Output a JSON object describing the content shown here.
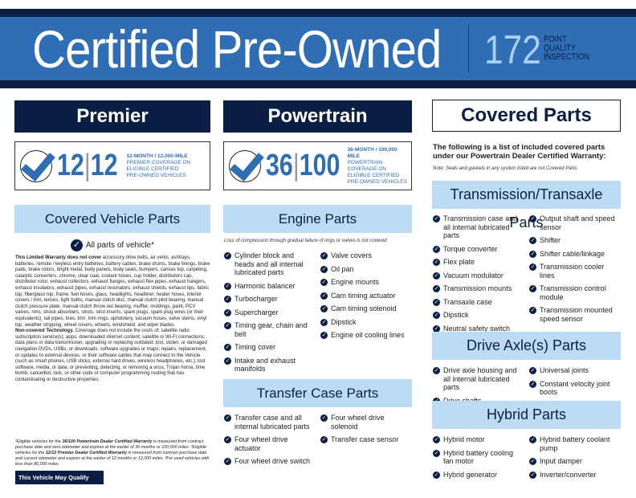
{
  "header": {
    "title": "Certified Pre-Owned",
    "points": "172",
    "points_label": [
      "POINT",
      "QUALITY",
      "INSPECTION"
    ]
  },
  "premier": {
    "heading": "Premier",
    "num1": "12",
    "num2": "12",
    "line1": "12-MONTH / 12,000-MILE",
    "line2": "PREMIER COVERAGE ON",
    "line3": "ELIGIBLE CERTIFIED",
    "line4": "PRE-OWNED VEHICLES"
  },
  "powertrain": {
    "heading": "Powertrain",
    "num1": "36",
    "num2": "100",
    "line1": "36-MONTH / 100,000 MILE",
    "line2": "POWERTRAIN COVERAGE ON",
    "line3": "ELIGIBLE CERTIFIED",
    "line4": "PRE-OWNED VEHICLES"
  },
  "vehicle_parts": {
    "heading": "Covered Vehicle Parts",
    "all_parts": "All parts of vehicle*",
    "exclusion_bold": "This Limited Warranty does not cover",
    "exclusion_text": " accessory drive belts, air vents, ashtrays, batteries, remote / keyless entry batteries, battery cables, brake drums, brake linings, brake pads, brake rotors, bright metal, body panels, body seals, bumpers, canvas top, carpeting, catalytic converters, chrome, clear coat, coolant hoses, cup holder, distributors cap, distributor rotor, exhaust collectors, exhaust flanges, exhaust flex pipes, exhaust hangers, exhaust insulators, exhaust pipes, exhaust resonators, exhaust shields, exhaust tips, fabric top, fiberglass top, frame, fuel hoses, glass, headlights, headliner, heater hoses, interior covers / trim, lenses, light bulbs, manual clutch disc, manual clutch pilot bearing, manual clutch pressure plate, manual clutch throw out bearing, muffler, moldings, paint, PCV valves, rims, shock absorbers, struts, strut inserts, spark plugs, spark plug wires (or their equivalents), tail pipes, tires, trim, trim rings, upholstery, vacuum hoses, valve stems, vinyl top, weather stripping, wheel covers, wheels, windshield, and wiper blades.",
    "tech_bold": "Non-covered Technology.",
    "tech_text": " Coverage does not include the costs of: satellite radio subscription service(s); apps; downloaded internet content; satellite or Wi-Fi connections; data plans or data transmission; upgrading or replacing outdated, lost, stolen, or damaged navigation DVDs, USBs, or downloads; software upgrades or maps; repairs, replacement, or updates to external devices, or their software cables that may connect to the Vehicle (such as smart phones, USB sticks, external hard drives, wireless headphones, etc.); lost software, media, or data; or preventing, detecting, or removing a virus, Trojan horse, time bomb, cancelbot, lock, or other code or computer programming routing that has contaminating or destructive properties.",
    "fn1a": "¹Eligible vehicles for the ",
    "fn1b": "36/100 Powertrain Dealer Certified Warranty",
    "fn1c": " is measured from contract purchase date and zero odometer and expires at the earlier of 36 months or 100,000 miles. ²Eligible vehicles for the ",
    "fn1d": "12/12 Premier Dealer Certified Warranty",
    "fn1e": " is measured from contract purchase date and current odometer and expires at the earlier of 12 months or 12,000 miles. ³For used vehicles with less than 80,000 miles.",
    "qualify_button": "This Vehicle May Qualify For..."
  },
  "engine": {
    "heading": "Engine Parts",
    "note": "Loss of compression through gradual failure of rings or valves is not covered",
    "left": [
      "Cylinder block and heads and all internal lubricated parts",
      "Harmonic balancer",
      "Turbocharger",
      "Supercharger",
      "Timing gear, chain and belt",
      "Timing cover",
      "Intake and exhaust manifolds"
    ],
    "right": [
      "Valve covers",
      "Oil pan",
      "Engine mounts",
      "Cam timing actuator",
      "Cam timing solenoid",
      "Dipstick",
      "Engine oil cooling lines"
    ]
  },
  "transfer": {
    "heading": "Transfer Case Parts",
    "left": [
      "Transfer case and all internal lubricated parts",
      "Four wheel drive actuator",
      "Four wheel drive switch"
    ],
    "right": [
      "Four wheel drive solenoid",
      "Transfer case sensor"
    ]
  },
  "covered": {
    "heading": "Covered Parts",
    "intro": "The following is a list of included covered parts under our Powertrain Dealer Certified Warranty:",
    "note": "Note: Seals and gaskets in any system listed are not Covered Parts."
  },
  "transmission": {
    "heading": "Transmission/Transaxle Parts",
    "left": [
      "Transmission case and all internal lubricated parts",
      "Torque converter",
      "Flex plate",
      "Vacuum modulator",
      "Transmission mounts",
      "Transaxle case",
      "Dipstick",
      "Neutral safety switch"
    ],
    "right": [
      "Output shaft and speed sensor",
      "Shifter",
      "Shifter cable/linkage",
      "Transmission cooler lines",
      "Transmission control module",
      "Transmission mounted speed sensor"
    ]
  },
  "axle": {
    "heading": "Drive Axle(s) Parts",
    "left": [
      "Drive axle housing and all internal lubricated parts",
      "Drive shafts"
    ],
    "right": [
      "Universal joints",
      "Constant velocity joint boots"
    ]
  },
  "hybrid": {
    "heading": "Hybrid Parts",
    "left": [
      "Hybrid motor",
      "Hybrid battery cooling fan motor",
      "Hybrid generator"
    ],
    "right": [
      "Hybrid battery coolant pump",
      "Input damper",
      "Inverter/converter"
    ]
  },
  "colors": {
    "navy": "#0b1f45",
    "blue": "#2f6db5",
    "light_blue": "#bcdcf5"
  },
  "icons": {
    "check": "check-circle-icon"
  }
}
